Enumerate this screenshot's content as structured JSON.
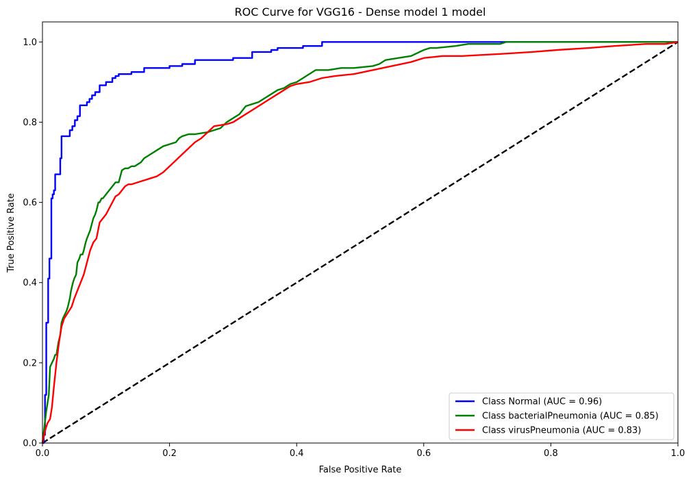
{
  "chart_data": {
    "type": "line",
    "title": "ROC Curve for VGG16 - Dense model 1 model",
    "xlabel": "False Positive Rate",
    "ylabel": "True Positive Rate",
    "xlim": [
      0.0,
      1.0
    ],
    "ylim": [
      0.0,
      1.05
    ],
    "xticks": [
      "0.0",
      "0.2",
      "0.4",
      "0.6",
      "0.8",
      "1.0"
    ],
    "yticks": [
      "0.0",
      "0.2",
      "0.4",
      "0.6",
      "0.8",
      "1.0"
    ],
    "grid": false,
    "legend_position": "bottom-right",
    "series": [
      {
        "name": "Class Normal (AUC = 0.96)",
        "color": "#0000ff",
        "x": [
          0.0,
          0.002,
          0.002,
          0.004,
          0.004,
          0.006,
          0.006,
          0.009,
          0.009,
          0.011,
          0.011,
          0.014,
          0.014,
          0.016,
          0.016,
          0.018,
          0.018,
          0.02,
          0.02,
          0.023,
          0.023,
          0.028,
          0.028,
          0.03,
          0.03,
          0.033,
          0.033,
          0.043,
          0.043,
          0.047,
          0.047,
          0.051,
          0.051,
          0.055,
          0.055,
          0.059,
          0.059,
          0.07,
          0.07,
          0.074,
          0.074,
          0.078,
          0.078,
          0.083,
          0.083,
          0.09,
          0.09,
          0.1,
          0.1,
          0.11,
          0.11,
          0.115,
          0.115,
          0.12,
          0.12,
          0.14,
          0.14,
          0.16,
          0.16,
          0.2,
          0.2,
          0.22,
          0.22,
          0.24,
          0.24,
          0.3,
          0.3,
          0.33,
          0.33,
          0.36,
          0.36,
          0.37,
          0.37,
          0.41,
          0.41,
          0.44,
          0.44,
          0.725,
          1.0
        ],
        "y": [
          0.0,
          0.0,
          0.02,
          0.02,
          0.12,
          0.12,
          0.3,
          0.3,
          0.41,
          0.41,
          0.46,
          0.46,
          0.61,
          0.61,
          0.62,
          0.62,
          0.63,
          0.63,
          0.67,
          0.67,
          0.67,
          0.67,
          0.71,
          0.71,
          0.765,
          0.765,
          0.765,
          0.765,
          0.78,
          0.78,
          0.79,
          0.79,
          0.805,
          0.805,
          0.815,
          0.815,
          0.842,
          0.842,
          0.85,
          0.85,
          0.858,
          0.858,
          0.867,
          0.867,
          0.875,
          0.875,
          0.892,
          0.892,
          0.9,
          0.9,
          0.91,
          0.91,
          0.915,
          0.915,
          0.92,
          0.92,
          0.925,
          0.925,
          0.935,
          0.935,
          0.94,
          0.94,
          0.945,
          0.945,
          0.955,
          0.955,
          0.96,
          0.96,
          0.975,
          0.975,
          0.98,
          0.98,
          0.985,
          0.985,
          0.99,
          0.99,
          1.0,
          1.0,
          1.0
        ]
      },
      {
        "name": "Class bacterialPneumonia (AUC = 0.85)",
        "color": "#008000",
        "x": [
          0.0,
          0.003,
          0.006,
          0.008,
          0.01,
          0.012,
          0.015,
          0.018,
          0.02,
          0.022,
          0.025,
          0.028,
          0.03,
          0.032,
          0.035,
          0.038,
          0.04,
          0.043,
          0.045,
          0.048,
          0.05,
          0.053,
          0.055,
          0.058,
          0.06,
          0.063,
          0.065,
          0.068,
          0.07,
          0.075,
          0.08,
          0.083,
          0.085,
          0.088,
          0.09,
          0.093,
          0.095,
          0.1,
          0.105,
          0.11,
          0.115,
          0.12,
          0.125,
          0.13,
          0.135,
          0.14,
          0.145,
          0.15,
          0.155,
          0.16,
          0.165,
          0.17,
          0.175,
          0.18,
          0.19,
          0.2,
          0.21,
          0.215,
          0.22,
          0.23,
          0.24,
          0.26,
          0.27,
          0.28,
          0.29,
          0.3,
          0.305,
          0.31,
          0.315,
          0.32,
          0.33,
          0.34,
          0.35,
          0.36,
          0.37,
          0.38,
          0.39,
          0.4,
          0.41,
          0.42,
          0.43,
          0.45,
          0.47,
          0.49,
          0.52,
          0.53,
          0.54,
          0.56,
          0.58,
          0.6,
          0.61,
          0.62,
          0.65,
          0.67,
          0.72,
          0.73,
          0.76,
          0.85,
          1.0
        ],
        "y": [
          0.0,
          0.04,
          0.08,
          0.1,
          0.12,
          0.19,
          0.2,
          0.21,
          0.22,
          0.22,
          0.25,
          0.27,
          0.3,
          0.31,
          0.32,
          0.33,
          0.34,
          0.36,
          0.38,
          0.4,
          0.41,
          0.42,
          0.45,
          0.46,
          0.47,
          0.47,
          0.48,
          0.5,
          0.51,
          0.53,
          0.56,
          0.57,
          0.58,
          0.6,
          0.6,
          0.61,
          0.61,
          0.62,
          0.63,
          0.64,
          0.65,
          0.65,
          0.68,
          0.685,
          0.685,
          0.69,
          0.69,
          0.695,
          0.7,
          0.71,
          0.715,
          0.72,
          0.725,
          0.73,
          0.74,
          0.745,
          0.75,
          0.76,
          0.765,
          0.77,
          0.77,
          0.775,
          0.78,
          0.785,
          0.8,
          0.81,
          0.815,
          0.82,
          0.83,
          0.84,
          0.845,
          0.85,
          0.86,
          0.87,
          0.88,
          0.885,
          0.895,
          0.9,
          0.91,
          0.92,
          0.93,
          0.93,
          0.935,
          0.935,
          0.94,
          0.945,
          0.955,
          0.96,
          0.965,
          0.98,
          0.985,
          0.985,
          0.99,
          0.995,
          0.995,
          1.0,
          1.0,
          1.0,
          1.0
        ]
      },
      {
        "name": "Class virusPneumonia (AUC = 0.83)",
        "color": "#ff0000",
        "x": [
          0.0,
          0.004,
          0.008,
          0.012,
          0.015,
          0.018,
          0.022,
          0.026,
          0.03,
          0.034,
          0.038,
          0.042,
          0.046,
          0.05,
          0.055,
          0.06,
          0.065,
          0.07,
          0.075,
          0.08,
          0.085,
          0.09,
          0.095,
          0.1,
          0.105,
          0.11,
          0.115,
          0.12,
          0.125,
          0.13,
          0.135,
          0.14,
          0.15,
          0.16,
          0.17,
          0.18,
          0.19,
          0.2,
          0.21,
          0.22,
          0.23,
          0.24,
          0.25,
          0.26,
          0.27,
          0.29,
          0.3,
          0.31,
          0.33,
          0.34,
          0.35,
          0.36,
          0.37,
          0.38,
          0.39,
          0.4,
          0.42,
          0.44,
          0.46,
          0.49,
          0.52,
          0.55,
          0.58,
          0.6,
          0.63,
          0.66,
          0.72,
          0.77,
          0.81,
          0.86,
          0.9,
          0.95,
          0.98,
          1.0
        ],
        "y": [
          0.0,
          0.03,
          0.05,
          0.06,
          0.09,
          0.14,
          0.2,
          0.25,
          0.29,
          0.31,
          0.32,
          0.33,
          0.34,
          0.36,
          0.38,
          0.4,
          0.42,
          0.45,
          0.48,
          0.5,
          0.51,
          0.55,
          0.56,
          0.57,
          0.585,
          0.6,
          0.615,
          0.62,
          0.63,
          0.64,
          0.645,
          0.645,
          0.65,
          0.655,
          0.66,
          0.665,
          0.675,
          0.69,
          0.705,
          0.72,
          0.735,
          0.75,
          0.76,
          0.775,
          0.79,
          0.795,
          0.8,
          0.81,
          0.83,
          0.84,
          0.85,
          0.86,
          0.87,
          0.88,
          0.89,
          0.895,
          0.9,
          0.91,
          0.915,
          0.92,
          0.93,
          0.94,
          0.95,
          0.96,
          0.965,
          0.965,
          0.97,
          0.975,
          0.98,
          0.985,
          0.99,
          0.995,
          0.995,
          1.0
        ]
      }
    ],
    "diagonal": {
      "color": "#000000",
      "x": [
        0.0,
        1.0
      ],
      "y": [
        0.0,
        1.0
      ],
      "style": "dashed"
    }
  }
}
